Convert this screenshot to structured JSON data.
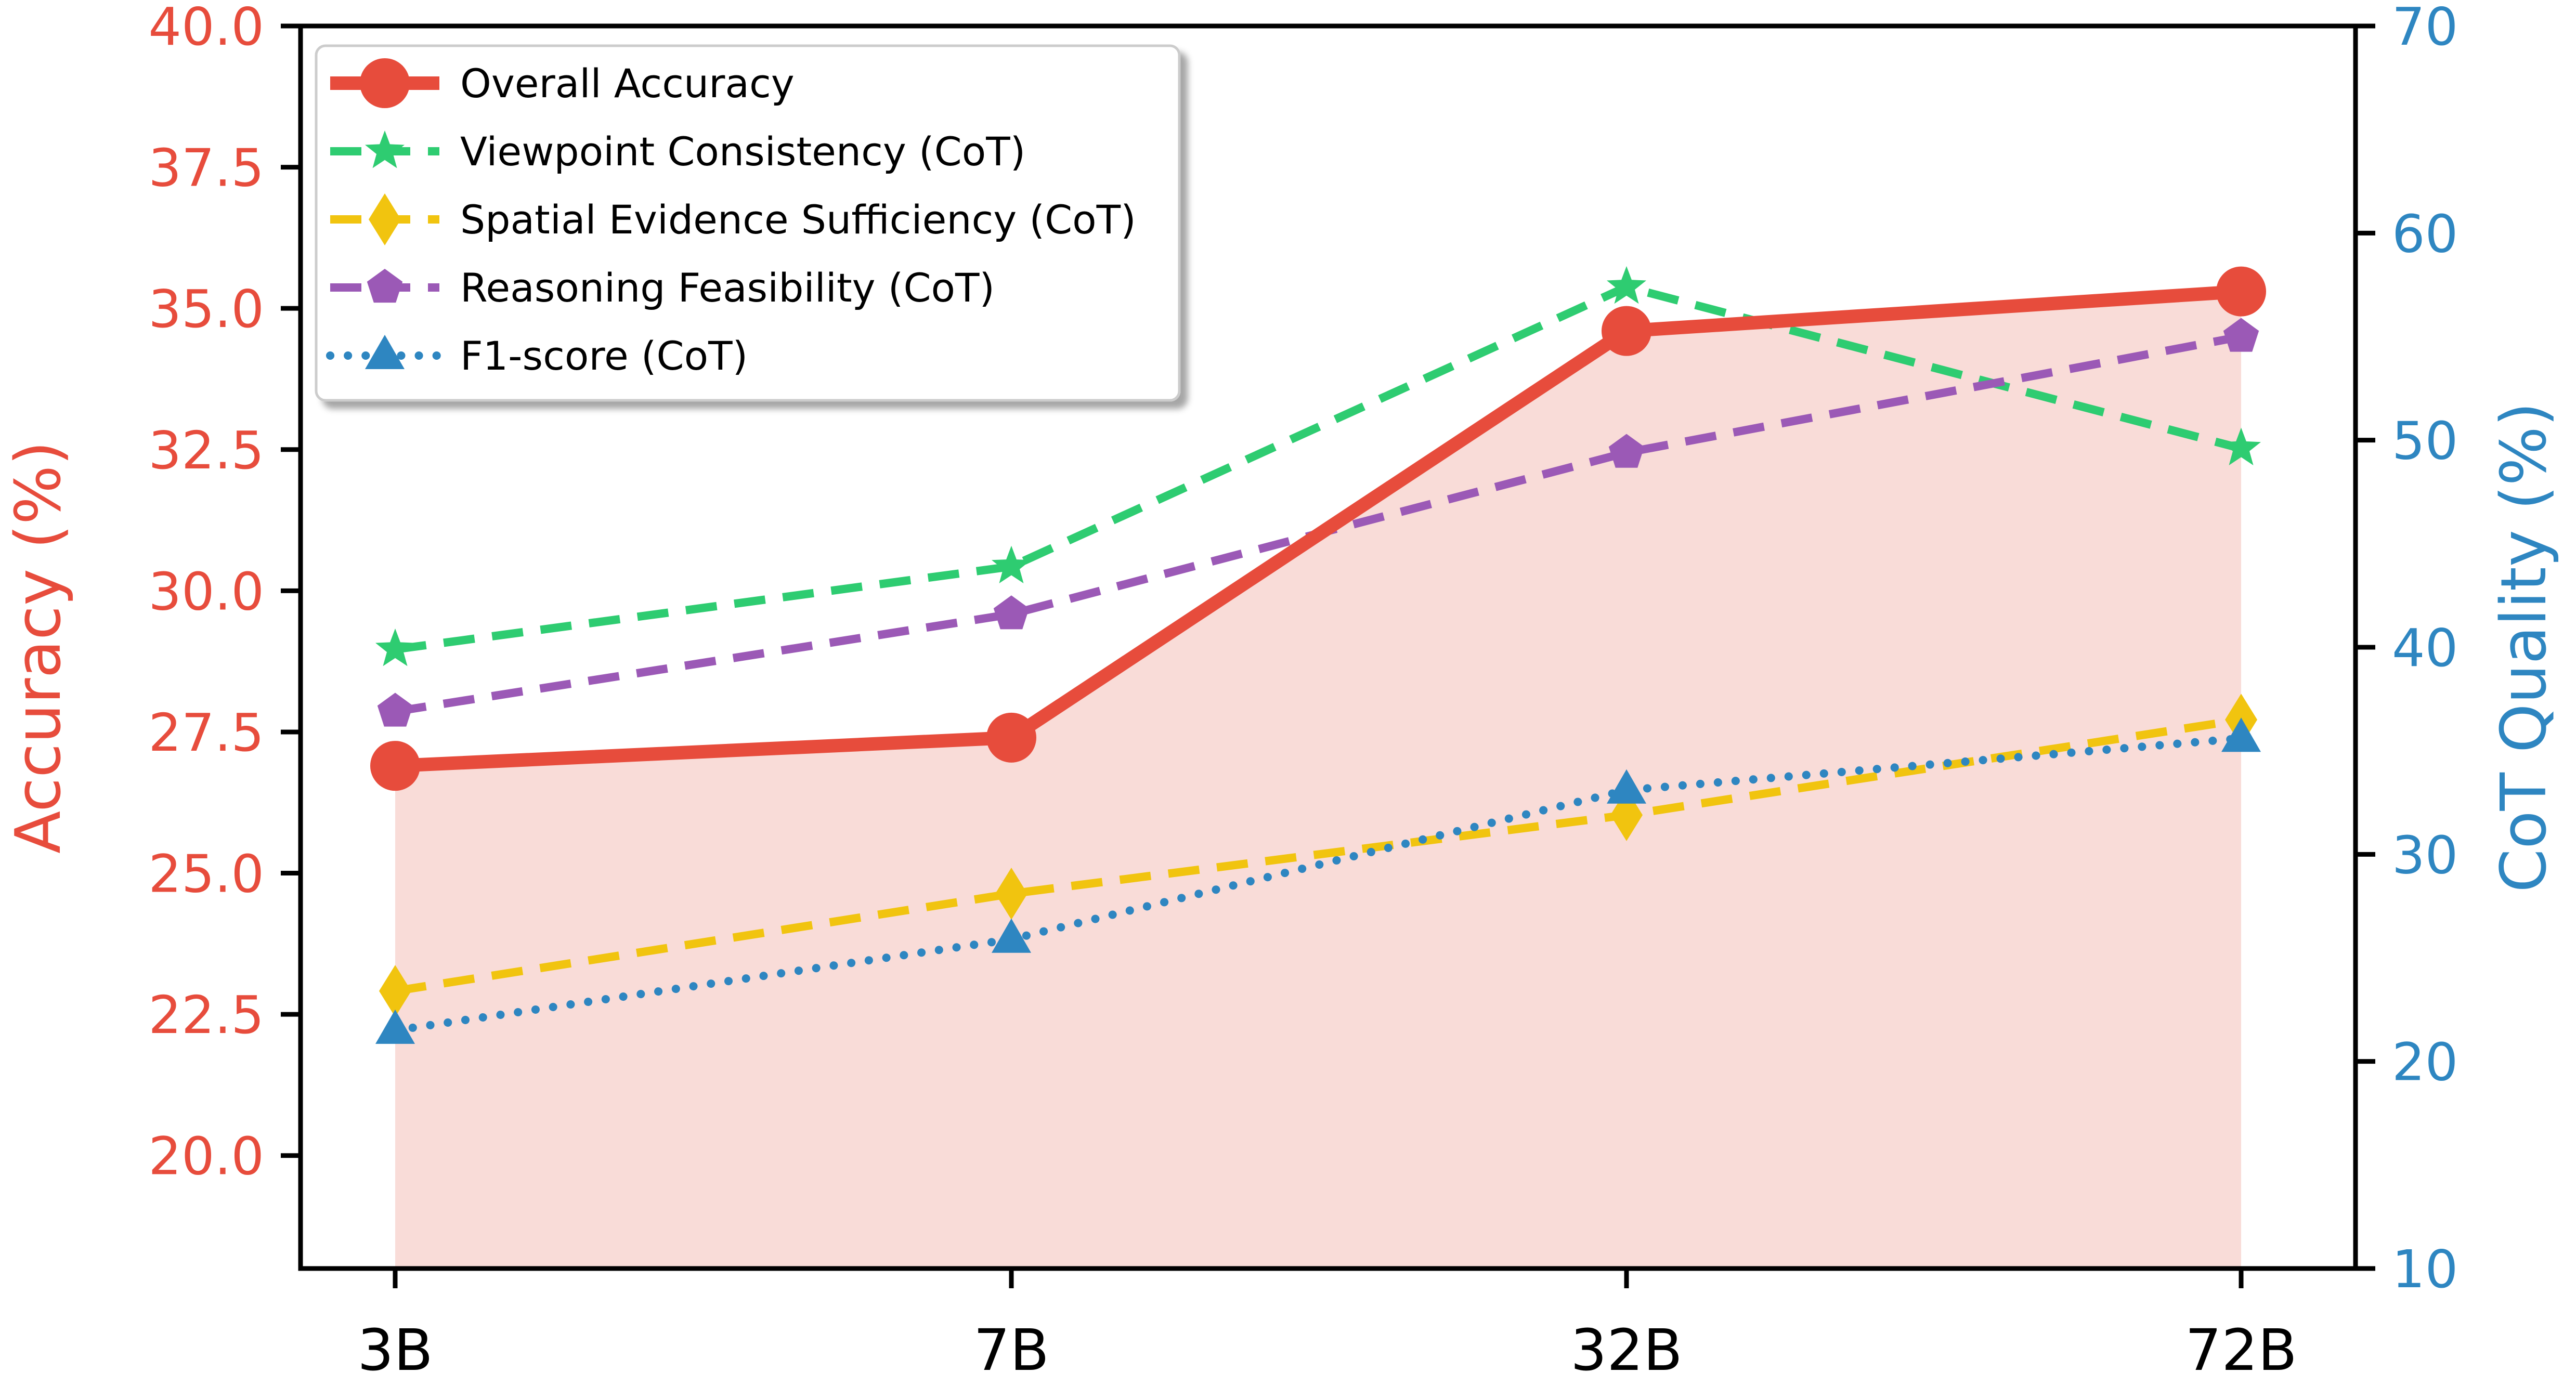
{
  "chart_data": {
    "type": "line",
    "categories": [
      "3B",
      "7B",
      "32B",
      "72B"
    ],
    "left_axis": {
      "label": "Accuracy (%)",
      "ylim": [
        18.0,
        40.0
      ],
      "ticks": [
        "20.0",
        "22.5",
        "25.0",
        "27.5",
        "30.0",
        "32.5",
        "35.0",
        "37.5",
        "40.0"
      ],
      "color": "#e74c3c"
    },
    "right_axis": {
      "label": "CoT Quality (%)",
      "ylim": [
        10,
        70
      ],
      "ticks": [
        "10",
        "20",
        "30",
        "40",
        "50",
        "60",
        "70"
      ],
      "color": "#2e86c1"
    },
    "series": [
      {
        "name": "Overall Accuracy",
        "axis": "left",
        "values": [
          26.9,
          27.4,
          34.6,
          35.3
        ],
        "color": "#e74c3c",
        "marker": "circle",
        "line": "solid",
        "fill": "#f9dcd8"
      },
      {
        "name": "Viewpoint Consistency (CoT)",
        "axis": "right",
        "values": [
          39.9,
          43.9,
          57.4,
          49.6
        ],
        "color": "#2ecc71",
        "marker": "star",
        "line": "dashed"
      },
      {
        "name": "Spatial Evidence Sufficiency (CoT)",
        "axis": "right",
        "values": [
          23.4,
          28.1,
          31.9,
          36.5
        ],
        "color": "#f1c40f",
        "marker": "diamond",
        "line": "dashed"
      },
      {
        "name": "Reasoning Feasibility (CoT)",
        "axis": "right",
        "values": [
          36.9,
          41.6,
          49.4,
          55.0
        ],
        "color": "#9b59b6",
        "marker": "pentagon",
        "line": "dashed"
      },
      {
        "name": "F1-score (CoT)",
        "axis": "right",
        "values": [
          21.5,
          25.9,
          33.1,
          35.6
        ],
        "color": "#2e86c1",
        "marker": "triangle",
        "line": "dotted"
      }
    ],
    "legend_position": "top-left",
    "grid": false
  }
}
